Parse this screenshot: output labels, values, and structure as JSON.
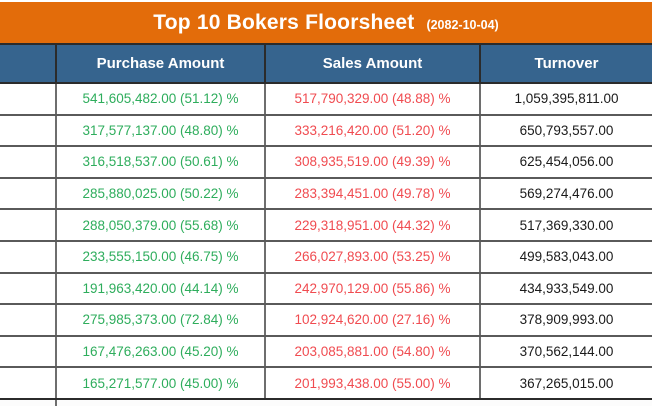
{
  "title": {
    "text": "Top 10 Bokers Floorsheet",
    "date": "(2082-10-04)"
  },
  "colors": {
    "title_bar": "#E36C0A",
    "header_bg": "#36648E",
    "purchase_text": "#2EAD5C",
    "sales_text": "#F04B50",
    "turnover_text": "#1a1a1a"
  },
  "table": {
    "columns": [
      "",
      "Purchase Amount",
      "Sales Amount",
      "Turnover"
    ],
    "rows": [
      {
        "broker": "",
        "purchase": "541,605,482.00 (51.12) %",
        "sales": "517,790,329.00 (48.88) %",
        "turnover": "1,059,395,811.00"
      },
      {
        "broker": "",
        "purchase": "317,577,137.00 (48.80) %",
        "sales": "333,216,420.00 (51.20) %",
        "turnover": "650,793,557.00"
      },
      {
        "broker": "",
        "purchase": "316,518,537.00 (50.61) %",
        "sales": "308,935,519.00 (49.39) %",
        "turnover": "625,454,056.00"
      },
      {
        "broker": "",
        "purchase": "285,880,025.00 (50.22) %",
        "sales": "283,394,451.00 (49.78) %",
        "turnover": "569,274,476.00"
      },
      {
        "broker": "",
        "purchase": "288,050,379.00 (55.68) %",
        "sales": "229,318,951.00 (44.32) %",
        "turnover": "517,369,330.00"
      },
      {
        "broker": "",
        "purchase": "233,555,150.00 (46.75) %",
        "sales": "266,027,893.00 (53.25) %",
        "turnover": "499,583,043.00"
      },
      {
        "broker": "",
        "purchase": "191,963,420.00 (44.14) %",
        "sales": "242,970,129.00 (55.86) %",
        "turnover": "434,933,549.00"
      },
      {
        "broker": "",
        "purchase": "275,985,373.00 (72.84) %",
        "sales": "102,924,620.00 (27.16) %",
        "turnover": "378,909,993.00"
      },
      {
        "broker": "",
        "purchase": "167,476,263.00 (45.20) %",
        "sales": "203,085,881.00 (54.80) %",
        "turnover": "370,562,144.00"
      },
      {
        "broker": "",
        "purchase": "165,271,577.00 (45.00) %",
        "sales": "201,993,438.00 (55.00) %",
        "turnover": "367,265,015.00"
      }
    ]
  }
}
